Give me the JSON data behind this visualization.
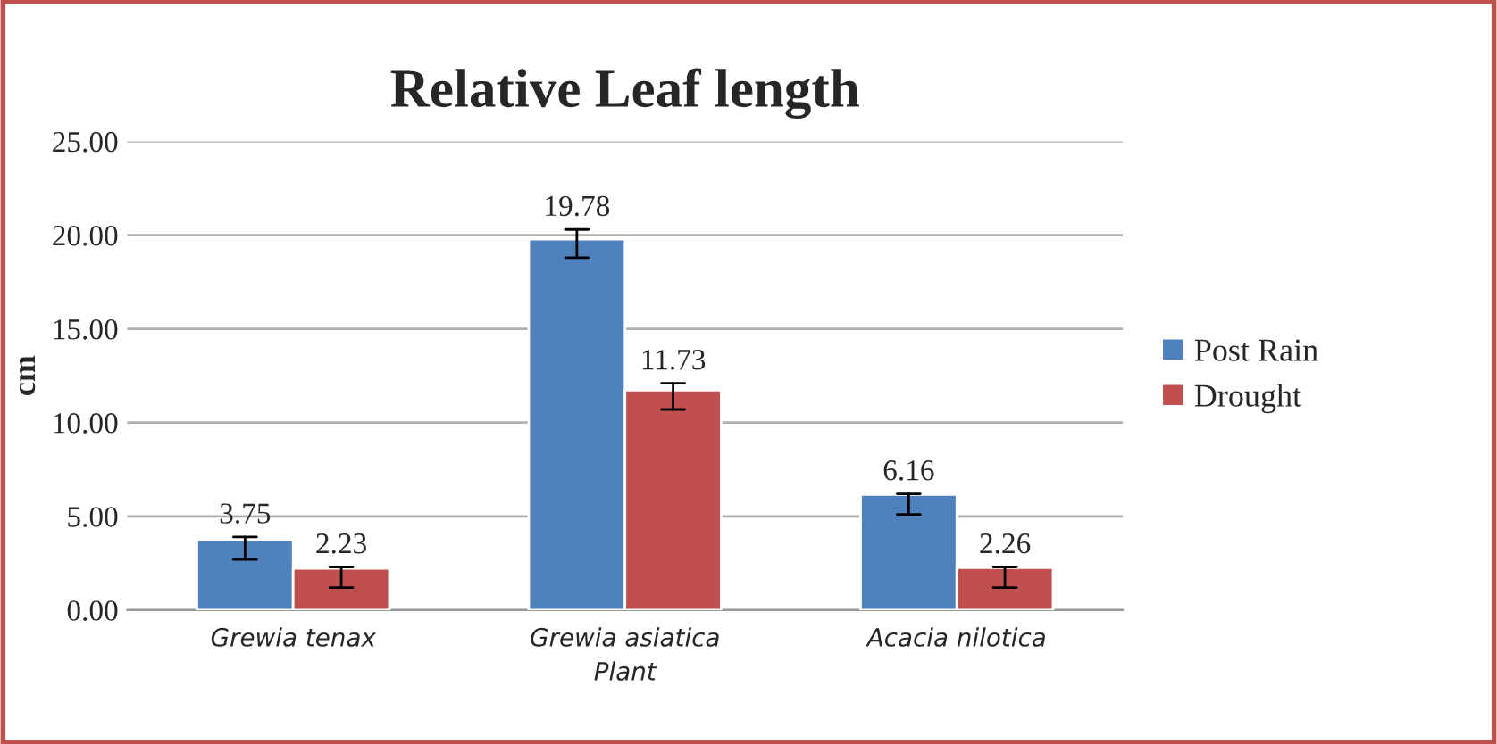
{
  "chart_data": {
    "type": "bar",
    "title": "Relative Leaf length",
    "xlabel": "Plant",
    "ylabel": "cm",
    "categories": [
      "Grewia tenax",
      "Grewia asiatica",
      "Acacia nilotica"
    ],
    "series": [
      {
        "name": "Post Rain",
        "color": "#4f81bd",
        "values": [
          3.75,
          19.78,
          6.16
        ],
        "errors": [
          [
            2.7,
            3.9
          ],
          [
            18.8,
            20.3
          ],
          [
            5.1,
            6.2
          ]
        ]
      },
      {
        "name": "Drought",
        "color": "#c0504d",
        "values": [
          2.23,
          11.73,
          2.26
        ],
        "errors": [
          [
            1.2,
            2.3
          ],
          [
            10.7,
            12.1
          ],
          [
            1.2,
            2.3
          ]
        ]
      }
    ],
    "ylim": [
      0,
      25
    ],
    "yticks": [
      {
        "value": 0,
        "label": "0.00"
      },
      {
        "value": 5,
        "label": "5.00"
      },
      {
        "value": 10,
        "label": "10.00"
      },
      {
        "value": 15,
        "label": "15.00"
      },
      {
        "value": 20,
        "label": "20.00"
      },
      {
        "value": 25,
        "label": "25.00"
      }
    ],
    "grid": "y",
    "legend": "right",
    "data_labels": true
  }
}
